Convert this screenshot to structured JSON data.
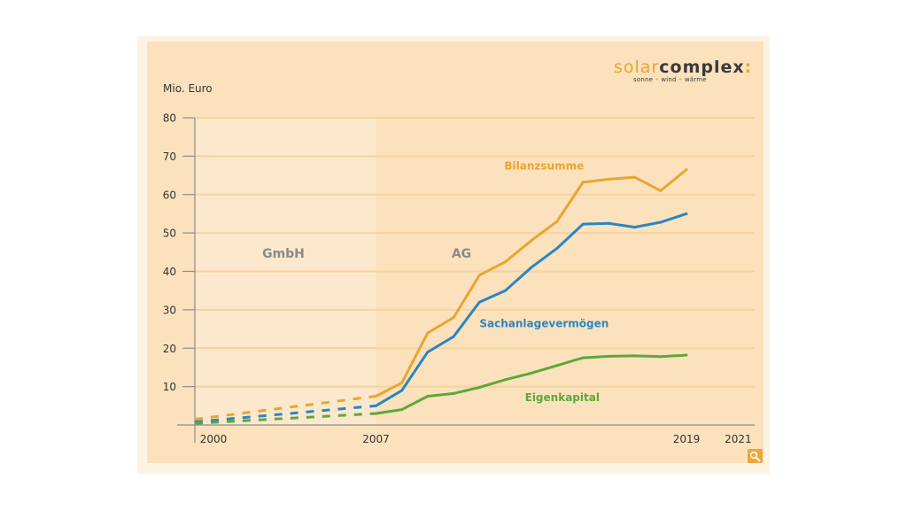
{
  "logo": {
    "solar": "solar",
    "complex": "complex",
    "colon": ":",
    "tagline": [
      "sonne",
      "wind",
      "wärme"
    ],
    "tagline_separator": "•"
  },
  "zoom_button": {
    "icon": "magnifier-icon"
  },
  "colors": {
    "bilanzsumme": "#e8a530",
    "sachanlagevermoegen": "#2b86c1",
    "eigenkapital": "#5ea83a",
    "phase_label": "#8a8a8a",
    "gridline": "#f7d29e",
    "gmbh_region": "#fce8cc",
    "panel": "#fbe2bd"
  },
  "chart_data": {
    "type": "line",
    "title": "",
    "xlabel": "",
    "ylabel": "Mio. Euro",
    "ylim": [
      0,
      80
    ],
    "xlim": [
      2000,
      2021.8
    ],
    "yticks": [
      10,
      20,
      30,
      40,
      50,
      60,
      70,
      80
    ],
    "xticks": [
      2000,
      2007,
      2019,
      2021
    ],
    "grid": true,
    "regions": [
      {
        "label": "GmbH",
        "from": 2000,
        "to": 2007
      },
      {
        "label": "AG",
        "from": 2007,
        "to": 2021.8
      }
    ],
    "series": [
      {
        "name": "Bilanzsumme",
        "color": "#e8a530",
        "label_at": [
          2013.5,
          66.5
        ],
        "dashed": {
          "x": [
            2000,
            2007
          ],
          "y": [
            1.5,
            7.5
          ]
        },
        "x": [
          2007,
          2008,
          2009,
          2010,
          2011,
          2012,
          2013,
          2014,
          2015,
          2016,
          2017,
          2018,
          2019
        ],
        "y": [
          7.5,
          11,
          24,
          28,
          39,
          42.5,
          48,
          53,
          63.2,
          64,
          64.5,
          61,
          66.5
        ]
      },
      {
        "name": "Sachanlagevermögen",
        "color": "#2b86c1",
        "label_at": [
          2013.5,
          25.5
        ],
        "dashed": {
          "x": [
            2000,
            2007
          ],
          "y": [
            0.8,
            5
          ]
        },
        "x": [
          2007,
          2008,
          2009,
          2010,
          2011,
          2012,
          2013,
          2014,
          2015,
          2016,
          2017,
          2018,
          2019
        ],
        "y": [
          5,
          9,
          19,
          23,
          32,
          35,
          41,
          46,
          52.3,
          52.5,
          51.5,
          52.8,
          55
        ]
      },
      {
        "name": "Eigenkapital",
        "color": "#5ea83a",
        "label_at": [
          2014.2,
          6.2
        ],
        "dashed": {
          "x": [
            2000,
            2007
          ],
          "y": [
            0.4,
            3
          ]
        },
        "x": [
          2007,
          2008,
          2009,
          2010,
          2011,
          2012,
          2013,
          2014,
          2015,
          2016,
          2017,
          2018,
          2019
        ],
        "y": [
          3,
          4,
          7.5,
          8.2,
          9.8,
          11.8,
          13.5,
          15.5,
          17.5,
          17.9,
          18,
          17.8,
          18.2
        ]
      }
    ]
  }
}
